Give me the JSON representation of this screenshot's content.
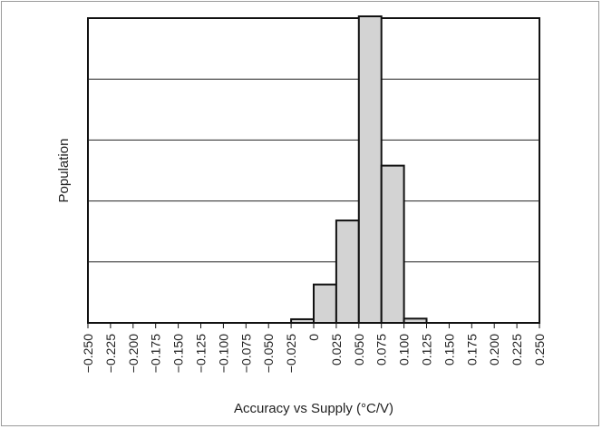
{
  "chart_data": {
    "type": "bar",
    "xlabel": "Accuracy vs Supply (°C/V)",
    "ylabel": "Population",
    "bin_width": 0.025,
    "x_ticks": [
      "−0.250",
      "−0.225",
      "−0.200",
      "−0.175",
      "−0.150",
      "−0.125",
      "−0.100",
      "−0.075",
      "−0.050",
      "−0.025",
      "0",
      "0.025",
      "0.050",
      "0.075",
      "0.100",
      "0.125",
      "0.150",
      "0.175",
      "0.200",
      "0.225",
      "0.250"
    ],
    "x_range": [
      -0.25,
      0.25
    ],
    "y_range": [
      0,
      5
    ],
    "y_tick_labels": "none",
    "grid": "horizontal",
    "bins": [
      {
        "start": -0.025,
        "end": 0.0,
        "value": 0.06
      },
      {
        "start": 0.0,
        "end": 0.025,
        "value": 0.63
      },
      {
        "start": 0.025,
        "end": 0.05,
        "value": 1.68
      },
      {
        "start": 0.05,
        "end": 0.075,
        "value": 5.07
      },
      {
        "start": 0.075,
        "end": 0.1,
        "value": 2.58
      },
      {
        "start": 0.1,
        "end": 0.125,
        "value": 0.07
      }
    ],
    "colors": {
      "bar_fill": "#d3d3d3",
      "bar_stroke": "#111111",
      "grid": "#222222",
      "axes": "#111111"
    }
  }
}
